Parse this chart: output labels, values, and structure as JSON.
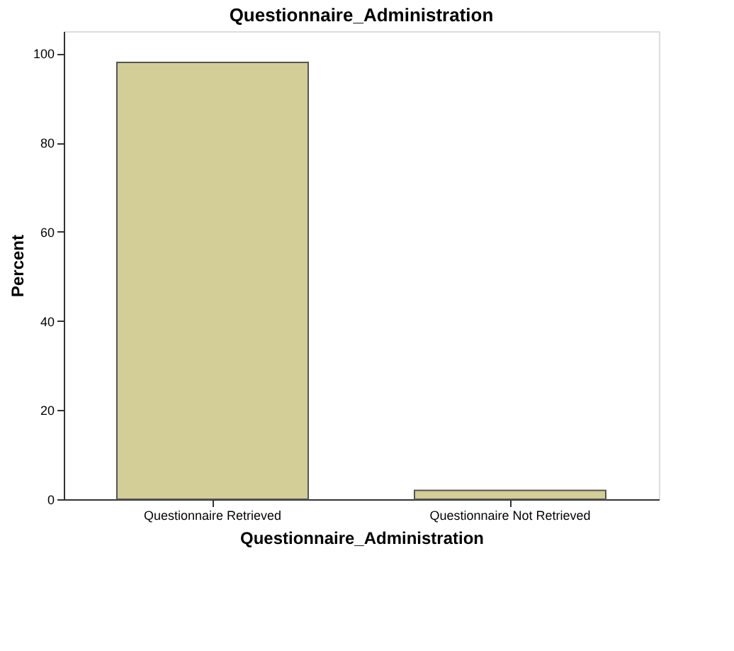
{
  "chart_data": {
    "type": "bar",
    "title": "Questionnaire_Administration",
    "xlabel": "Questionnaire_Administration",
    "ylabel": "Percent",
    "categories": [
      "Questionnaire Retrieved",
      "Questionnaire Not Retrieved"
    ],
    "values": [
      98,
      2
    ],
    "color": "#d3ce97",
    "ylim": [
      0,
      105
    ],
    "yticks": [
      0,
      20,
      40,
      60,
      80,
      100
    ],
    "grid": false
  }
}
